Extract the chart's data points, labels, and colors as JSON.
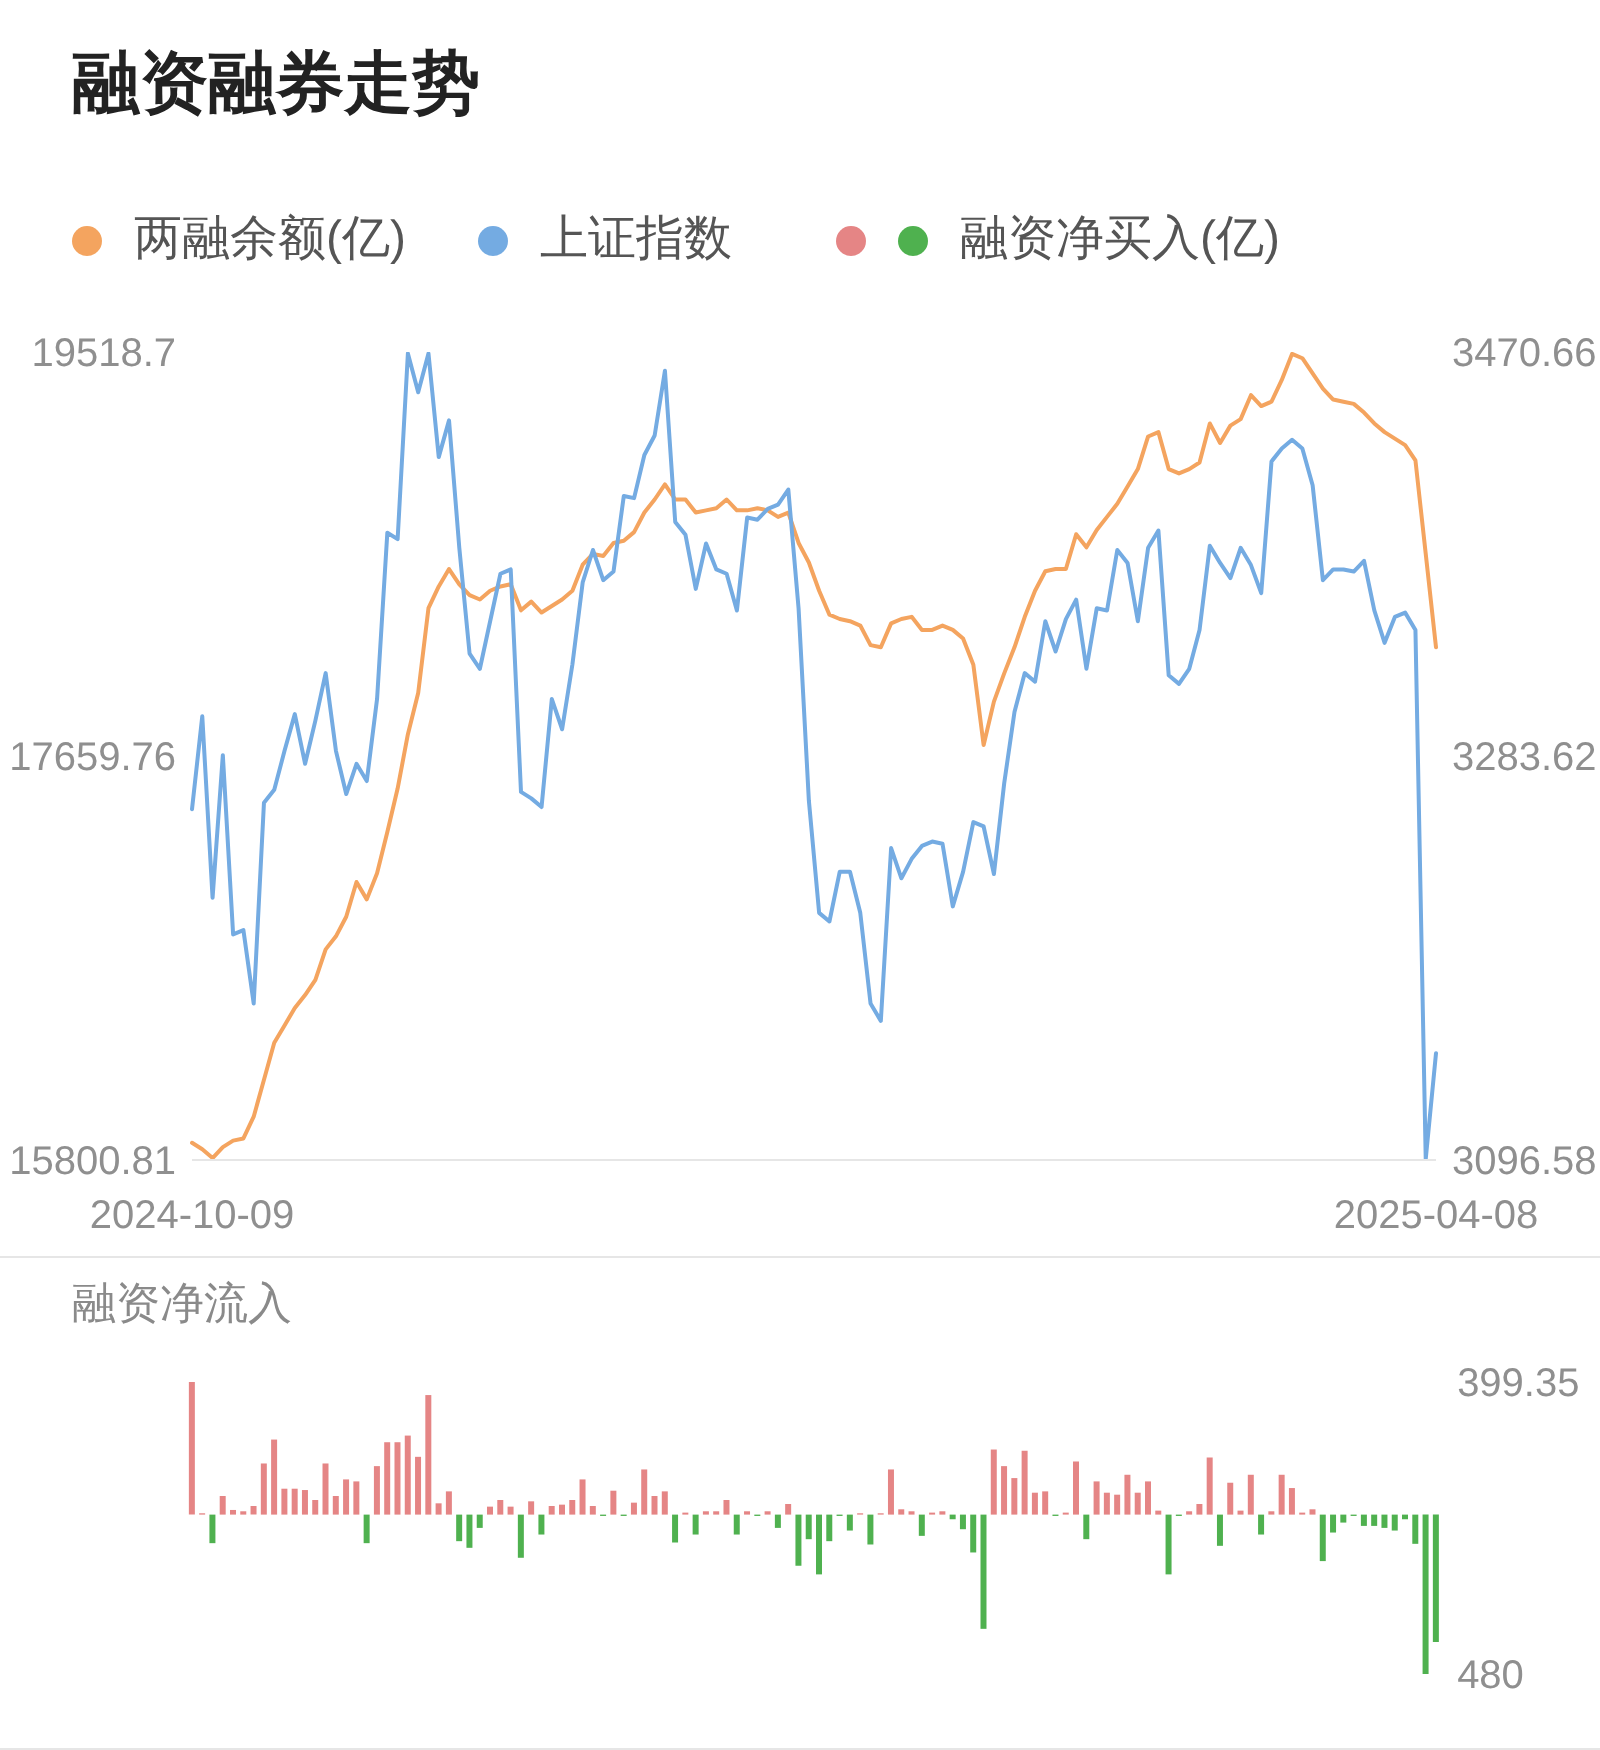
{
  "chart_data": [
    {
      "type": "line",
      "title": "融资融券走势",
      "categories": [
        "2024-10-09",
        null,
        null,
        null,
        null,
        null,
        null,
        null,
        null,
        null,
        null,
        null,
        null,
        null,
        null,
        null,
        null,
        null,
        null,
        null,
        null,
        null,
        null,
        null,
        null,
        null,
        null,
        null,
        null,
        null,
        null,
        null,
        null,
        null,
        null,
        null,
        null,
        null,
        null,
        null,
        null,
        null,
        null,
        null,
        null,
        null,
        null,
        null,
        null,
        null,
        null,
        null,
        null,
        null,
        null,
        null,
        null,
        null,
        null,
        null,
        null,
        null,
        null,
        null,
        null,
        null,
        null,
        null,
        null,
        null,
        null,
        null,
        null,
        null,
        null,
        null,
        null,
        null,
        null,
        null,
        null,
        null,
        null,
        null,
        null,
        null,
        null,
        null,
        null,
        null,
        null,
        null,
        null,
        null,
        null,
        null,
        null,
        null,
        null,
        null,
        null,
        null,
        null,
        null,
        null,
        null,
        null,
        null,
        null,
        null,
        null,
        null,
        null,
        null,
        null,
        null,
        null,
        null,
        null,
        null,
        null,
        "2025-04-08"
      ],
      "series": [
        {
          "name": "两融余额(亿)",
          "color": "#f4a45f",
          "values": [
            15880,
            15850,
            15810,
            15860,
            15890,
            15900,
            16000,
            16170,
            16340,
            16420,
            16500,
            16560,
            16630,
            16770,
            16830,
            16920,
            17080,
            17000,
            17120,
            17310,
            17510,
            17760,
            17950,
            18340,
            18440,
            18520,
            18450,
            18400,
            18380,
            18420,
            18440,
            18450,
            18330,
            18370,
            18320,
            18350,
            18380,
            18420,
            18540,
            18590,
            18580,
            18640,
            18650,
            18690,
            18780,
            18840,
            18910,
            18840,
            18840,
            18780,
            18790,
            18800,
            18840,
            18790,
            18790,
            18800,
            18790,
            18760,
            18780,
            18640,
            18550,
            18420,
            18310,
            18290,
            18280,
            18260,
            18170,
            18160,
            18270,
            18290,
            18300,
            18240,
            18240,
            18260,
            18240,
            18200,
            18080,
            17710,
            17910,
            18040,
            18160,
            18300,
            18420,
            18510,
            18520,
            18520,
            18680,
            18620,
            18700,
            18760,
            18820,
            18900,
            18980,
            19130,
            19150,
            18980,
            18960,
            18980,
            19010,
            19190,
            19100,
            19180,
            19210,
            19320,
            19270,
            19290,
            19390,
            19510,
            19490,
            19420,
            19350,
            19300,
            19290,
            19280,
            19240,
            19190,
            19150,
            19120,
            19090,
            19020,
            18590,
            18160
          ]
        },
        {
          "name": "上证指数",
          "color": "#74abe2",
          "axis": "y2",
          "values": [
            3259,
            3302,
            3218,
            3284,
            3201,
            3203,
            3169,
            3262,
            3268,
            3286,
            3303,
            3280,
            3300,
            3322,
            3286,
            3266,
            3280,
            3272,
            3310,
            3387,
            3384,
            3470,
            3452,
            3470,
            3422,
            3439,
            3380,
            3331,
            3324,
            3346,
            3368,
            3370,
            3267,
            3264,
            3260,
            3310,
            3296,
            3326,
            3364,
            3379,
            3365,
            3369,
            3404,
            3403,
            3423,
            3432,
            3462,
            3392,
            3386,
            3361,
            3382,
            3370,
            3368,
            3351,
            3394,
            3393,
            3398,
            3400,
            3407,
            3352,
            3263,
            3211,
            3207,
            3230,
            3230,
            3211,
            3169,
            3161,
            3241,
            3227,
            3236,
            3242,
            3244,
            3243,
            3214,
            3230,
            3253,
            3251,
            3229,
            3271,
            3304,
            3322,
            3318,
            3346,
            3332,
            3347,
            3356,
            3324,
            3352,
            3351,
            3379,
            3373,
            3346,
            3380,
            3388,
            3321,
            3317,
            3324,
            3342,
            3381,
            3373,
            3366,
            3380,
            3372,
            3359,
            3420,
            3426,
            3430,
            3426,
            3409,
            3365,
            3370,
            3370,
            3369,
            3374,
            3351,
            3336,
            3348,
            3350,
            3342,
            3097,
            3146
          ]
        }
      ],
      "ylim": [
        15800.81,
        19518.7
      ],
      "yticks": [
        15800.81,
        17659.76,
        19518.7
      ],
      "y2lim": [
        3096.58,
        3470.66
      ],
      "y2ticks": [
        3096.58,
        3283.62,
        3470.66
      ],
      "legend": "top left"
    },
    {
      "type": "bar",
      "title": "融资净流入",
      "categories": [
        "2024-10-09",
        null,
        null,
        null,
        null,
        null,
        null,
        null,
        null,
        null,
        null,
        null,
        null,
        null,
        null,
        null,
        null,
        null,
        null,
        null,
        null,
        null,
        null,
        null,
        null,
        null,
        null,
        null,
        null,
        null,
        null,
        null,
        null,
        null,
        null,
        null,
        null,
        null,
        null,
        null,
        null,
        null,
        null,
        null,
        null,
        null,
        null,
        null,
        null,
        null,
        null,
        null,
        null,
        null,
        null,
        null,
        null,
        null,
        null,
        null,
        null,
        null,
        null,
        null,
        null,
        null,
        null,
        null,
        null,
        null,
        null,
        null,
        null,
        null,
        null,
        null,
        null,
        null,
        null,
        null,
        null,
        null,
        null,
        null,
        null,
        null,
        null,
        null,
        null,
        null,
        null,
        null,
        null,
        null,
        null,
        null,
        null,
        null,
        null,
        null,
        null,
        null,
        null,
        null,
        null,
        null,
        null,
        null,
        null,
        null,
        null,
        null,
        null,
        null,
        null,
        null,
        null,
        null,
        null,
        null,
        null,
        "2025-04-08"
      ],
      "series": [
        {
          "name": "融资净买入(亿)",
          "values": [
            399,
            4,
            -86,
            56,
            14,
            10,
            26,
            154,
            226,
            78,
            78,
            74,
            44,
            154,
            56,
            106,
            100,
            -86,
            146,
            218,
            218,
            238,
            174,
            360,
            34,
            70,
            -80,
            -100,
            -40,
            24,
            44,
            24,
            -130,
            40,
            -60,
            26,
            30,
            44,
            106,
            26,
            -4,
            72,
            -4,
            36,
            136,
            56,
            70,
            -84,
            6,
            -60,
            10,
            10,
            44,
            -60,
            10,
            -4,
            10,
            -40,
            32,
            -154,
            -74,
            -180,
            -80,
            -4,
            -48,
            4,
            -90,
            4,
            136,
            16,
            10,
            -64,
            6,
            10,
            -14,
            -44,
            -114,
            -344,
            196,
            146,
            110,
            192,
            66,
            70,
            -4,
            6,
            160,
            -74,
            100,
            66,
            60,
            120,
            66,
            100,
            12,
            -180,
            -4,
            10,
            32,
            172,
            -94,
            96,
            12,
            120,
            -60,
            10,
            120,
            80,
            6,
            16,
            -140,
            -54,
            -24,
            -4,
            -34,
            -34,
            -40,
            -48,
            -14,
            -88,
            -480,
            -384
          ],
          "colors": [
            "#e58585",
            "#e58585",
            "#4fb14f",
            "#e58585",
            "#e58585",
            "#e58585",
            "#e58585",
            "#e58585",
            "#e58585",
            "#e58585",
            "#e58585",
            "#e58585",
            "#e58585",
            "#e58585",
            "#e58585",
            "#e58585",
            "#e58585",
            "#4fb14f",
            "#e58585",
            "#e58585",
            "#e58585",
            "#e58585",
            "#e58585",
            "#e58585",
            "#e58585",
            "#e58585",
            "#4fb14f",
            "#4fb14f",
            "#4fb14f",
            "#e58585",
            "#e58585",
            "#e58585",
            "#4fb14f",
            "#e58585",
            "#4fb14f",
            "#e58585",
            "#e58585",
            "#e58585",
            "#e58585",
            "#e58585",
            "#4fb14f",
            "#e58585",
            "#4fb14f",
            "#e58585",
            "#e58585",
            "#e58585",
            "#e58585",
            "#4fb14f",
            "#e58585",
            "#4fb14f",
            "#e58585",
            "#e58585",
            "#e58585",
            "#4fb14f",
            "#e58585",
            "#4fb14f",
            "#e58585",
            "#4fb14f",
            "#e58585",
            "#4fb14f",
            "#4fb14f",
            "#4fb14f",
            "#4fb14f",
            "#4fb14f",
            "#4fb14f",
            "#e58585",
            "#4fb14f",
            "#e58585",
            "#e58585",
            "#e58585",
            "#e58585",
            "#4fb14f",
            "#e58585",
            "#e58585",
            "#4fb14f",
            "#4fb14f",
            "#4fb14f",
            "#4fb14f",
            "#e58585",
            "#e58585",
            "#e58585",
            "#e58585",
            "#e58585",
            "#e58585",
            "#4fb14f",
            "#e58585",
            "#e58585",
            "#4fb14f",
            "#e58585",
            "#e58585",
            "#e58585",
            "#e58585",
            "#e58585",
            "#e58585",
            "#e58585",
            "#4fb14f",
            "#4fb14f",
            "#e58585",
            "#e58585",
            "#e58585",
            "#4fb14f",
            "#e58585",
            "#e58585",
            "#e58585",
            "#4fb14f",
            "#e58585",
            "#e58585",
            "#e58585",
            "#e58585",
            "#e58585",
            "#4fb14f",
            "#4fb14f",
            "#4fb14f",
            "#4fb14f",
            "#4fb14f",
            "#4fb14f",
            "#4fb14f",
            "#4fb14f",
            "#4fb14f",
            "#4fb14f",
            "#4fb14f",
            "#4fb14f"
          ]
        }
      ],
      "ylim": [
        -480,
        399.35
      ],
      "yticks": [
        {
          "value": -480,
          "label": "480"
        },
        399.35
      ],
      "tick_labels": "y",
      "legend": "top"
    }
  ]
}
